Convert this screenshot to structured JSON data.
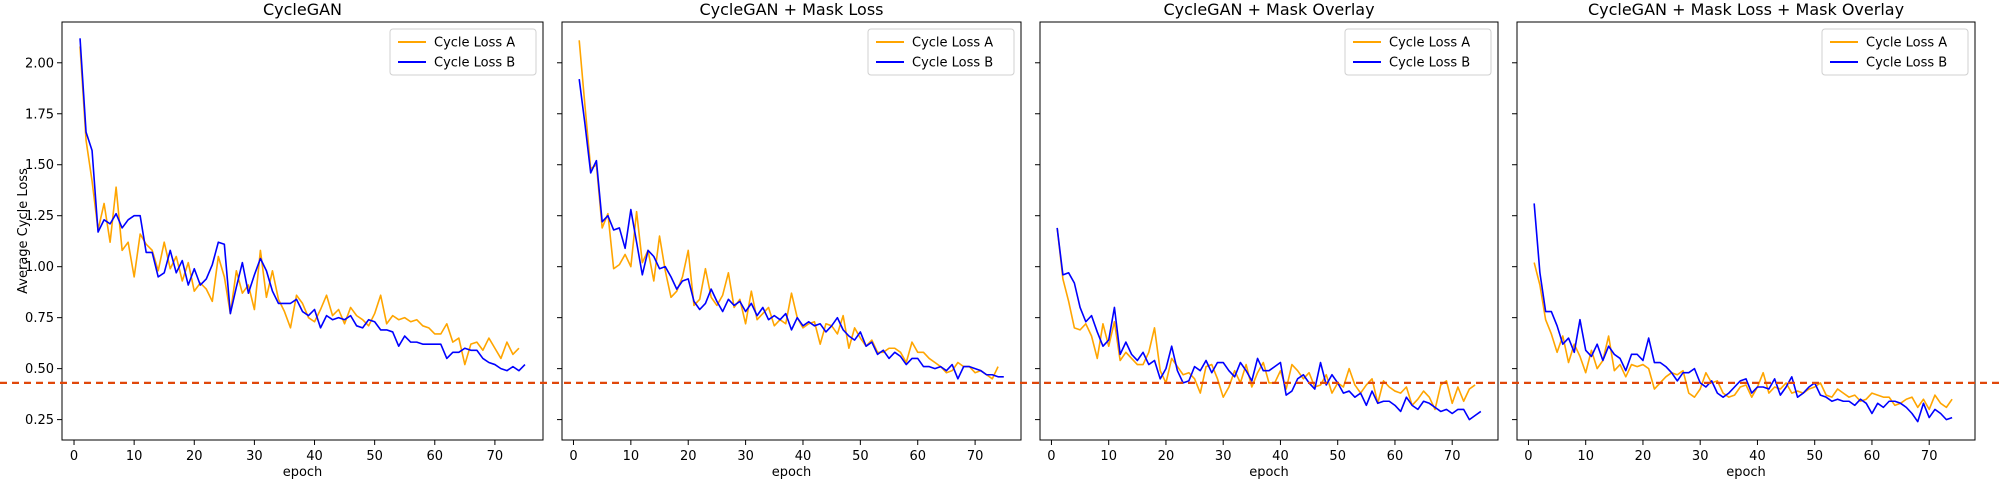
{
  "colors": {
    "series_a": "#FFA500",
    "series_b": "#0000FF",
    "threshold": "#E0470A"
  },
  "legend": {
    "a": "Cycle Loss A",
    "b": "Cycle Loss B"
  },
  "common": {
    "xlabel": "epoch",
    "ylabel": "Average Cycle Loss",
    "threshold_y": 0.43
  },
  "chart_data": [
    {
      "type": "line",
      "title": "CycleGAN",
      "xlabel": "epoch",
      "ylabel": "Average Cycle Loss",
      "xlim": [
        -2,
        78
      ],
      "ylim": [
        0.15,
        2.2
      ],
      "xticks": [
        0,
        10,
        20,
        30,
        40,
        50,
        60,
        70
      ],
      "yticks": [
        0.25,
        0.5,
        0.75,
        1.0,
        1.25,
        1.5,
        1.75,
        2.0
      ],
      "yticklabels": [
        "0.25",
        "0.50",
        "0.75",
        "1.00",
        "1.25",
        "1.50",
        "1.75",
        "2.00"
      ],
      "legend_position": "top-right",
      "threshold": 0.43,
      "series": [
        {
          "name": "Cycle Loss A",
          "values": [
            2.08,
            1.62,
            1.42,
            1.18,
            1.31,
            1.12,
            1.39,
            1.08,
            1.12,
            0.95,
            1.16,
            1.11,
            1.08,
            0.98,
            1.12,
            0.99,
            1.05,
            0.93,
            1.02,
            0.88,
            0.92,
            0.89,
            0.83,
            1.05,
            0.95,
            0.77,
            0.98,
            0.87,
            0.91,
            0.79,
            1.08,
            0.85,
            0.98,
            0.84,
            0.78,
            0.7,
            0.86,
            0.82,
            0.75,
            0.73,
            0.79,
            0.86,
            0.76,
            0.79,
            0.72,
            0.8,
            0.76,
            0.74,
            0.71,
            0.77,
            0.86,
            0.72,
            0.76,
            0.74,
            0.75,
            0.73,
            0.74,
            0.71,
            0.7,
            0.67,
            0.67,
            0.72,
            0.63,
            0.65,
            0.52,
            0.62,
            0.63,
            0.59,
            0.65,
            0.6,
            0.55,
            0.63,
            0.57,
            0.6
          ]
        },
        {
          "name": "Cycle Loss B",
          "values": [
            2.12,
            1.66,
            1.57,
            1.17,
            1.23,
            1.21,
            1.26,
            1.19,
            1.23,
            1.25,
            1.25,
            1.07,
            1.07,
            0.95,
            0.97,
            1.08,
            0.97,
            1.03,
            0.91,
            0.99,
            0.91,
            0.94,
            1.01,
            1.12,
            1.11,
            0.77,
            0.9,
            1.02,
            0.87,
            0.96,
            1.04,
            0.98,
            0.88,
            0.82,
            0.82,
            0.82,
            0.84,
            0.78,
            0.76,
            0.79,
            0.7,
            0.76,
            0.74,
            0.75,
            0.74,
            0.76,
            0.71,
            0.7,
            0.74,
            0.73,
            0.69,
            0.69,
            0.68,
            0.61,
            0.66,
            0.63,
            0.63,
            0.62,
            0.62,
            0.62,
            0.62,
            0.55,
            0.58,
            0.58,
            0.6,
            0.59,
            0.59,
            0.55,
            0.53,
            0.52,
            0.5,
            0.49,
            0.51,
            0.49,
            0.52
          ]
        }
      ]
    },
    {
      "type": "line",
      "title": "CycleGAN + Mask Loss",
      "xlabel": "epoch",
      "ylabel": "",
      "xlim": [
        -2,
        78
      ],
      "ylim": [
        0.15,
        2.2
      ],
      "xticks": [
        0,
        10,
        20,
        30,
        40,
        50,
        60,
        70
      ],
      "yticks": [
        0.25,
        0.5,
        0.75,
        1.0,
        1.25,
        1.5,
        1.75,
        2.0
      ],
      "yticklabels": [],
      "legend_position": "top-right",
      "threshold": 0.43,
      "series": [
        {
          "name": "Cycle Loss A",
          "values": [
            2.11,
            1.79,
            1.48,
            1.5,
            1.19,
            1.26,
            0.99,
            1.01,
            1.06,
            1.0,
            1.27,
            1.02,
            1.08,
            0.93,
            1.15,
            0.98,
            0.85,
            0.88,
            0.95,
            1.08,
            0.81,
            0.84,
            0.99,
            0.85,
            0.81,
            0.86,
            0.97,
            0.8,
            0.84,
            0.72,
            0.88,
            0.74,
            0.77,
            0.8,
            0.71,
            0.74,
            0.72,
            0.87,
            0.75,
            0.7,
            0.72,
            0.73,
            0.62,
            0.72,
            0.71,
            0.67,
            0.76,
            0.6,
            0.7,
            0.65,
            0.61,
            0.64,
            0.58,
            0.58,
            0.6,
            0.6,
            0.58,
            0.53,
            0.63,
            0.58,
            0.58,
            0.55,
            0.53,
            0.51,
            0.48,
            0.49,
            0.53,
            0.51,
            0.51,
            0.48,
            0.49,
            0.47,
            0.45,
            0.51
          ]
        },
        {
          "name": "Cycle Loss B",
          "values": [
            1.92,
            1.7,
            1.46,
            1.52,
            1.22,
            1.25,
            1.18,
            1.19,
            1.09,
            1.28,
            1.12,
            0.96,
            1.08,
            1.05,
            0.99,
            1.0,
            0.95,
            0.89,
            0.93,
            0.94,
            0.83,
            0.79,
            0.82,
            0.89,
            0.83,
            0.78,
            0.84,
            0.81,
            0.83,
            0.78,
            0.82,
            0.76,
            0.8,
            0.74,
            0.76,
            0.74,
            0.77,
            0.69,
            0.75,
            0.71,
            0.73,
            0.71,
            0.72,
            0.68,
            0.71,
            0.75,
            0.69,
            0.66,
            0.64,
            0.68,
            0.61,
            0.63,
            0.57,
            0.59,
            0.55,
            0.58,
            0.56,
            0.52,
            0.55,
            0.55,
            0.51,
            0.51,
            0.5,
            0.51,
            0.49,
            0.52,
            0.45,
            0.51,
            0.51,
            0.5,
            0.49,
            0.47,
            0.47,
            0.46,
            0.46
          ]
        }
      ]
    },
    {
      "type": "line",
      "title": "CycleGAN + Mask Overlay",
      "xlabel": "epoch",
      "ylabel": "",
      "xlim": [
        -2,
        78
      ],
      "ylim": [
        0.15,
        2.2
      ],
      "xticks": [
        0,
        10,
        20,
        30,
        40,
        50,
        60,
        70
      ],
      "yticks": [
        0.25,
        0.5,
        0.75,
        1.0,
        1.25,
        1.5,
        1.75,
        2.0
      ],
      "yticklabels": [],
      "legend_position": "top-right",
      "threshold": 0.43,
      "series": [
        {
          "name": "Cycle Loss A",
          "values": [
            1.19,
            0.94,
            0.83,
            0.7,
            0.69,
            0.72,
            0.66,
            0.55,
            0.72,
            0.61,
            0.73,
            0.54,
            0.58,
            0.55,
            0.52,
            0.52,
            0.58,
            0.7,
            0.49,
            0.43,
            0.55,
            0.51,
            0.47,
            0.48,
            0.45,
            0.38,
            0.51,
            0.52,
            0.45,
            0.36,
            0.41,
            0.49,
            0.43,
            0.52,
            0.41,
            0.48,
            0.53,
            0.43,
            0.43,
            0.49,
            0.4,
            0.52,
            0.49,
            0.45,
            0.48,
            0.41,
            0.42,
            0.47,
            0.38,
            0.43,
            0.41,
            0.5,
            0.42,
            0.38,
            0.42,
            0.45,
            0.33,
            0.44,
            0.41,
            0.39,
            0.38,
            0.41,
            0.32,
            0.35,
            0.39,
            0.36,
            0.3,
            0.42,
            0.44,
            0.33,
            0.41,
            0.34,
            0.4,
            0.42
          ]
        },
        {
          "name": "Cycle Loss B",
          "values": [
            1.19,
            0.96,
            0.97,
            0.92,
            0.8,
            0.73,
            0.76,
            0.68,
            0.61,
            0.64,
            0.8,
            0.57,
            0.63,
            0.57,
            0.54,
            0.58,
            0.52,
            0.54,
            0.45,
            0.5,
            0.61,
            0.49,
            0.43,
            0.44,
            0.51,
            0.49,
            0.54,
            0.48,
            0.53,
            0.53,
            0.49,
            0.46,
            0.53,
            0.49,
            0.44,
            0.55,
            0.49,
            0.49,
            0.51,
            0.53,
            0.37,
            0.39,
            0.45,
            0.47,
            0.43,
            0.4,
            0.53,
            0.42,
            0.47,
            0.43,
            0.38,
            0.39,
            0.36,
            0.38,
            0.32,
            0.39,
            0.33,
            0.34,
            0.34,
            0.32,
            0.29,
            0.36,
            0.32,
            0.3,
            0.34,
            0.33,
            0.31,
            0.29,
            0.3,
            0.28,
            0.3,
            0.3,
            0.25,
            0.27,
            0.29
          ]
        }
      ]
    },
    {
      "type": "line",
      "title": "CycleGAN + Mask Loss + Mask Overlay",
      "xlabel": "epoch",
      "ylabel": "",
      "xlim": [
        -2,
        78
      ],
      "ylim": [
        0.15,
        2.2
      ],
      "xticks": [
        0,
        10,
        20,
        30,
        40,
        50,
        60,
        70
      ],
      "yticks": [
        0.25,
        0.5,
        0.75,
        1.0,
        1.25,
        1.5,
        1.75,
        2.0
      ],
      "yticklabels": [],
      "legend_position": "top-right",
      "threshold": 0.43,
      "series": [
        {
          "name": "Cycle Loss A",
          "values": [
            1.02,
            0.91,
            0.74,
            0.67,
            0.58,
            0.66,
            0.53,
            0.62,
            0.56,
            0.48,
            0.59,
            0.5,
            0.54,
            0.66,
            0.49,
            0.52,
            0.46,
            0.52,
            0.51,
            0.52,
            0.5,
            0.4,
            0.43,
            0.46,
            0.48,
            0.47,
            0.49,
            0.38,
            0.36,
            0.4,
            0.48,
            0.43,
            0.44,
            0.38,
            0.36,
            0.37,
            0.41,
            0.42,
            0.36,
            0.41,
            0.48,
            0.38,
            0.41,
            0.4,
            0.43,
            0.38,
            0.39,
            0.38,
            0.4,
            0.41,
            0.43,
            0.37,
            0.36,
            0.4,
            0.38,
            0.36,
            0.37,
            0.34,
            0.35,
            0.38,
            0.37,
            0.36,
            0.36,
            0.32,
            0.33,
            0.35,
            0.36,
            0.31,
            0.35,
            0.3,
            0.37,
            0.33,
            0.31,
            0.35
          ]
        },
        {
          "name": "Cycle Loss B",
          "values": [
            1.31,
            0.97,
            0.78,
            0.78,
            0.71,
            0.62,
            0.65,
            0.58,
            0.74,
            0.59,
            0.56,
            0.62,
            0.54,
            0.61,
            0.57,
            0.55,
            0.49,
            0.57,
            0.57,
            0.54,
            0.65,
            0.53,
            0.53,
            0.51,
            0.48,
            0.44,
            0.48,
            0.48,
            0.5,
            0.43,
            0.41,
            0.44,
            0.38,
            0.36,
            0.38,
            0.41,
            0.44,
            0.45,
            0.38,
            0.41,
            0.41,
            0.4,
            0.45,
            0.37,
            0.41,
            0.46,
            0.36,
            0.38,
            0.41,
            0.43,
            0.37,
            0.36,
            0.34,
            0.35,
            0.34,
            0.34,
            0.32,
            0.35,
            0.33,
            0.28,
            0.33,
            0.31,
            0.34,
            0.34,
            0.33,
            0.31,
            0.28,
            0.24,
            0.33,
            0.26,
            0.3,
            0.28,
            0.25,
            0.26
          ]
        }
      ]
    }
  ]
}
